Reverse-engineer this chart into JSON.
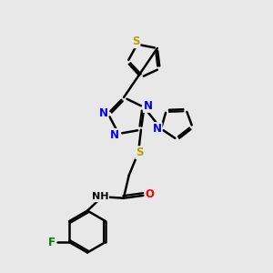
{
  "bg_color": "#e8e8e8",
  "bond_color": "#000000",
  "atom_colors": {
    "N": "#0000ff",
    "S": "#b8a000",
    "O": "#ff0000",
    "F": "#008000",
    "H": "#000000",
    "C": "#000000"
  },
  "bond_width": 1.8,
  "figsize": [
    3.0,
    3.0
  ],
  "dpi": 100,
  "xlim": [
    0,
    10
  ],
  "ylim": [
    0,
    10
  ]
}
